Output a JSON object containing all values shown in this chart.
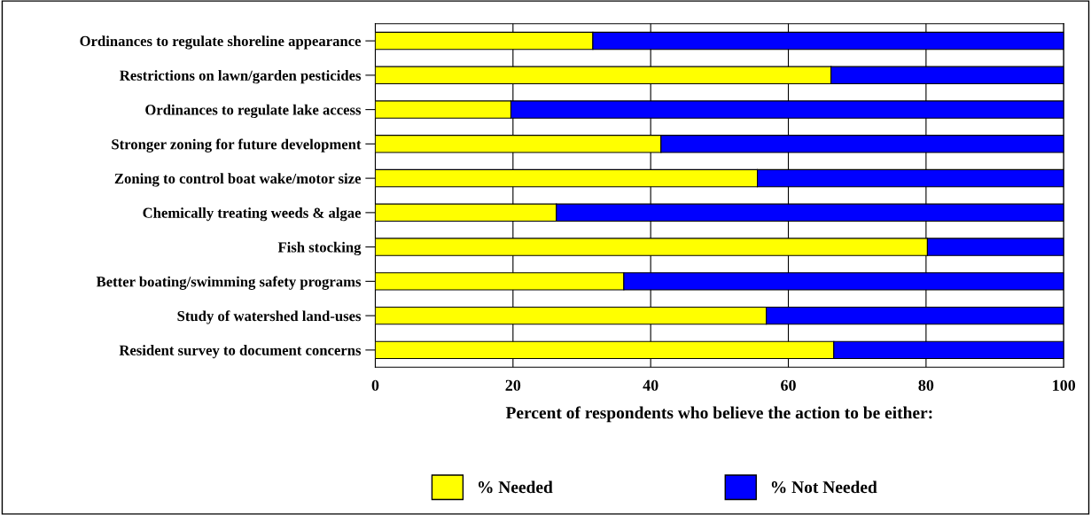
{
  "chart_data": {
    "type": "bar",
    "orientation": "horizontal",
    "stacked": true,
    "categories": [
      "Ordinances to regulate shoreline appearance",
      "Restrictions on lawn/garden pesticides",
      "Ordinances to regulate lake access",
      "Stronger zoning for future development",
      "Zoning to control boat wake/motor size",
      "Chemically treating weeds & algae",
      "Fish stocking",
      "Better boating/swimming safety programs",
      "Study of watershed land-uses",
      "Resident survey to document concerns"
    ],
    "series": [
      {
        "name": "% Needed",
        "color": "#ffff00",
        "values": [
          31.6,
          66.2,
          19.7,
          41.5,
          55.5,
          26.3,
          80.2,
          36.1,
          56.8,
          66.6
        ]
      },
      {
        "name": "% Not Needed",
        "color": "#0000ff",
        "values": [
          68.4,
          33.8,
          80.3,
          58.5,
          44.5,
          73.7,
          19.8,
          63.9,
          43.2,
          33.4
        ]
      }
    ],
    "xlim": [
      0,
      100
    ],
    "xticks": [
      0,
      20,
      40,
      60,
      80,
      100
    ],
    "xlabel": "Percent of respondents who believe the action to be either:",
    "grid": "x",
    "legend": "bottom"
  }
}
